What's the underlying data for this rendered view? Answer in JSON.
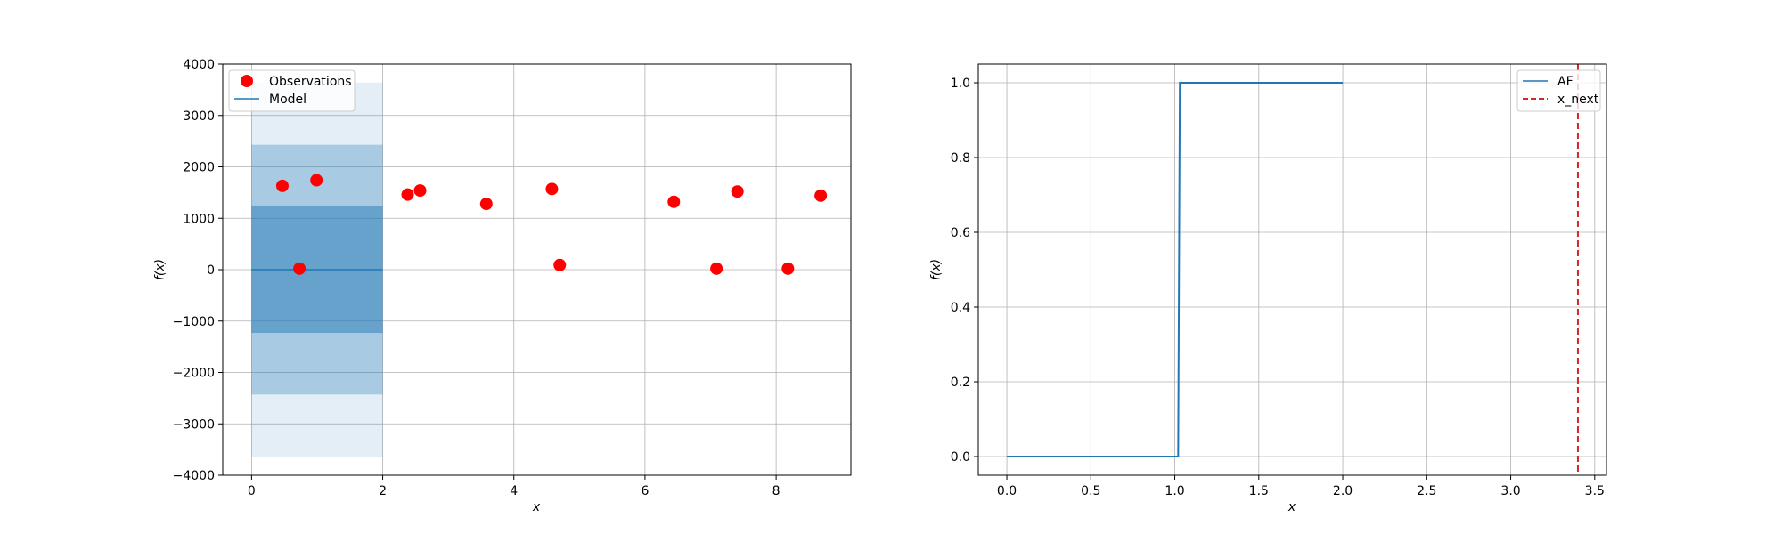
{
  "chart_data": [
    {
      "type": "scatter",
      "xlabel": "x",
      "ylabel": "f(x)",
      "xlim": [
        -0.44,
        9.14
      ],
      "ylim": [
        -4000,
        4000
      ],
      "xticks": [
        0,
        2,
        4,
        6,
        8
      ],
      "yticks": [
        -4000,
        -3000,
        -2000,
        -1000,
        0,
        1000,
        2000,
        3000,
        4000
      ],
      "xtick_labels": [
        "0",
        "2",
        "4",
        "6",
        "8"
      ],
      "ytick_labels": [
        "−4000",
        "−3000",
        "−2000",
        "−1000",
        "0",
        "1000",
        "2000",
        "3000",
        "4000"
      ],
      "grid": true,
      "legend_position": "top-left",
      "legend": [
        "Observations",
        "Model"
      ],
      "colors": {
        "observations": "#ff0000",
        "model": "#1f77b4"
      },
      "observations": {
        "x": [
          0.47,
          0.73,
          0.99,
          2.38,
          2.57,
          3.58,
          4.58,
          4.7,
          6.44,
          7.09,
          7.41,
          8.18,
          8.68
        ],
        "y": [
          1630,
          20,
          1740,
          1460,
          1540,
          1280,
          1570,
          90,
          1320,
          20,
          1520,
          20,
          1440
        ]
      },
      "model": {
        "x": [
          0,
          2
        ],
        "mean": [
          0,
          0
        ],
        "bands": [
          {
            "lower": -1230,
            "upper": 1230,
            "opacity": 0.8
          },
          {
            "lower": -2430,
            "upper": 2430,
            "opacity": 0.5
          },
          {
            "lower": -3640,
            "upper": 3640,
            "opacity": 0.2
          }
        ]
      }
    },
    {
      "type": "line",
      "xlabel": "x",
      "ylabel": "f(x)",
      "xlim": [
        -0.17,
        3.57
      ],
      "ylim": [
        -0.05,
        1.05
      ],
      "xticks": [
        0,
        0.5,
        1,
        1.5,
        2,
        2.5,
        3,
        3.5
      ],
      "yticks": [
        0,
        0.2,
        0.4,
        0.6,
        0.8,
        1
      ],
      "xtick_labels": [
        "0.0",
        "0.5",
        "1.0",
        "1.5",
        "2.0",
        "2.5",
        "3.0",
        "3.5"
      ],
      "ytick_labels": [
        "0.0",
        "0.2",
        "0.4",
        "0.6",
        "0.8",
        "1.0"
      ],
      "grid": true,
      "legend_position": "top-right",
      "legend": [
        "AF",
        "x_next"
      ],
      "colors": {
        "af": "#1f77b4",
        "x_next": "#d62728"
      },
      "series": [
        {
          "name": "AF",
          "x": [
            0,
            1.02,
            1.03,
            2.0
          ],
          "y": [
            0,
            0,
            1,
            1
          ]
        }
      ],
      "vline": {
        "name": "x_next",
        "x": 3.4
      }
    }
  ]
}
